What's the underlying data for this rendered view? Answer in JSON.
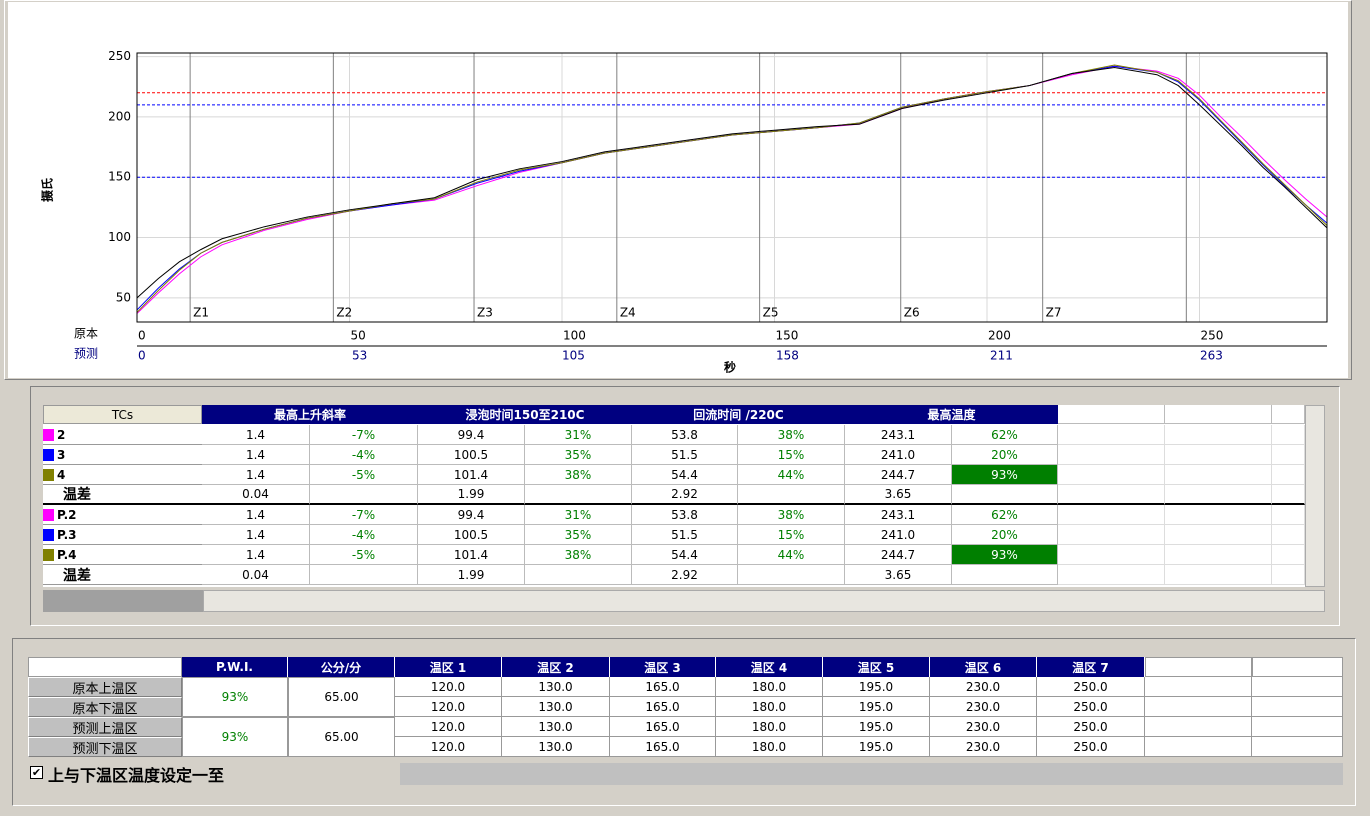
{
  "chart_data": {
    "type": "line",
    "x_axis_label": "秒",
    "y_axis_label": "摄氏",
    "x_row_label": "原本",
    "x2_row_label": "预测",
    "x": [
      0,
      5,
      10,
      15,
      20,
      30,
      40,
      50,
      60,
      70,
      80,
      90,
      100,
      110,
      120,
      130,
      140,
      150,
      160,
      170,
      180,
      190,
      200,
      210,
      220,
      230,
      240,
      245,
      250,
      255,
      260,
      265,
      270,
      275,
      280
    ],
    "series": [
      {
        "color": "#ff00ff",
        "values": [
          37,
          54,
          70,
          84,
          94,
          106,
          115,
          122,
          127,
          131,
          143,
          154,
          162,
          170,
          175,
          180,
          185,
          188,
          191,
          194,
          207,
          215,
          221,
          226,
          235,
          242,
          238,
          232,
          218,
          200,
          183,
          165,
          148,
          132,
          117
        ]
      },
      {
        "color": "#0000ff",
        "values": [
          40,
          58,
          74,
          87,
          96,
          107,
          116,
          122,
          127,
          132,
          145,
          155,
          162,
          170,
          175,
          180,
          185,
          188,
          191,
          195,
          208,
          215,
          221,
          226,
          236,
          242,
          237,
          229,
          214,
          196,
          178,
          160,
          143,
          127,
          112
        ]
      },
      {
        "color": "#808000",
        "values": [
          38,
          56,
          73,
          87,
          96,
          107,
          116,
          122,
          128,
          132,
          146,
          156,
          162,
          170,
          175,
          180,
          185,
          188,
          191,
          195,
          208,
          215,
          221,
          226,
          236,
          243,
          237,
          230,
          215,
          197,
          179,
          161,
          144,
          127,
          110
        ]
      },
      {
        "color": "#000000",
        "values": [
          50,
          66,
          80,
          90,
          99,
          109,
          117,
          123,
          128,
          133,
          148,
          157,
          163,
          171,
          176,
          181,
          186,
          189,
          192,
          194,
          207,
          214,
          220,
          226,
          236,
          241,
          235,
          226,
          210,
          193,
          176,
          158,
          142,
          125,
          108
        ]
      }
    ],
    "xlim": [
      0,
      280
    ],
    "xticks": [
      0,
      50,
      100,
      150,
      200,
      250
    ],
    "x2lim": [
      0,
      294.7
    ],
    "x2ticks": [
      0,
      53,
      105,
      158,
      211,
      263
    ],
    "ylim": [
      30,
      253
    ],
    "yticks": [
      50,
      100,
      150,
      200,
      250
    ],
    "grid": true,
    "reference_lines": [
      {
        "value": 220,
        "color": "#ff0000"
      },
      {
        "value": 210,
        "color": "#0000ff"
      },
      {
        "value": 150,
        "color": "#0000ff"
      }
    ],
    "zones": [
      {
        "label": "Z1",
        "start": 12.5
      },
      {
        "label": "Z2",
        "start": 46.2
      },
      {
        "label": "Z3",
        "start": 79.3
      },
      {
        "label": "Z4",
        "start": 112.9
      },
      {
        "label": "Z5",
        "start": 146.5
      },
      {
        "label": "Z6",
        "start": 179.7
      },
      {
        "label": "Z7",
        "start": 213.1
      }
    ],
    "zone_end": 246.9
  },
  "tc_table": {
    "header": [
      "TCs",
      "最高上升斜率",
      "浸泡时间150至210C",
      "回流时间 /220C",
      "最高温度"
    ],
    "highlight_color": "#007f00",
    "rows": [
      {
        "name": "2",
        "color": "#ff00ff",
        "cells": [
          "1.4",
          "-7%",
          "99.4",
          "31%",
          "53.8",
          "38%",
          "243.1",
          "62%"
        ]
      },
      {
        "name": "3",
        "color": "#0000ff",
        "cells": [
          "1.4",
          "-4%",
          "100.5",
          "35%",
          "51.5",
          "15%",
          "241.0",
          "20%"
        ]
      },
      {
        "name": "4",
        "color": "#808000",
        "cells": [
          "1.4",
          "-5%",
          "101.4",
          "38%",
          "54.4",
          "44%",
          "244.7",
          "93%"
        ],
        "highlight": 7
      },
      {
        "name": "温差",
        "cells": [
          "0.04",
          null,
          "1.99",
          null,
          "2.92",
          null,
          "3.65",
          null
        ]
      },
      {
        "name": "P.2",
        "color": "#ff00ff",
        "cells": [
          "1.4",
          "-7%",
          "99.4",
          "31%",
          "53.8",
          "38%",
          "243.1",
          "62%"
        ]
      },
      {
        "name": "P.3",
        "color": "#0000ff",
        "cells": [
          "1.4",
          "-4%",
          "100.5",
          "35%",
          "51.5",
          "15%",
          "241.0",
          "20%"
        ]
      },
      {
        "name": "P.4",
        "color": "#808000",
        "cells": [
          "1.4",
          "-5%",
          "101.4",
          "38%",
          "54.4",
          "44%",
          "244.7",
          "93%"
        ],
        "highlight": 7
      },
      {
        "name": "温差",
        "cells": [
          "0.04",
          null,
          "1.99",
          null,
          "2.92",
          null,
          "3.65",
          null
        ]
      }
    ]
  },
  "zone_table": {
    "header": [
      "P.W.I.",
      "公分/分",
      "温区 1",
      "温区 2",
      "温区 3",
      "温区 4",
      "温区 5",
      "温区 6",
      "温区 7"
    ],
    "groups": [
      {
        "pwi": "93%",
        "speed": "65.00"
      },
      {
        "pwi": "93%",
        "speed": "65.00"
      }
    ],
    "rows": [
      {
        "label": "原本上温区",
        "zones": [
          "120.0",
          "130.0",
          "165.0",
          "180.0",
          "195.0",
          "230.0",
          "250.0"
        ]
      },
      {
        "label": "原本下温区",
        "zones": [
          "120.0",
          "130.0",
          "165.0",
          "180.0",
          "195.0",
          "230.0",
          "250.0"
        ]
      },
      {
        "label": "预测上温区",
        "zones": [
          "120.0",
          "130.0",
          "165.0",
          "180.0",
          "195.0",
          "230.0",
          "250.0"
        ]
      },
      {
        "label": "预测下温区",
        "zones": [
          "120.0",
          "130.0",
          "165.0",
          "180.0",
          "195.0",
          "230.0",
          "250.0"
        ]
      }
    ],
    "checkbox_label": "上与下温区温度设定一至",
    "checkbox_checked": true
  }
}
